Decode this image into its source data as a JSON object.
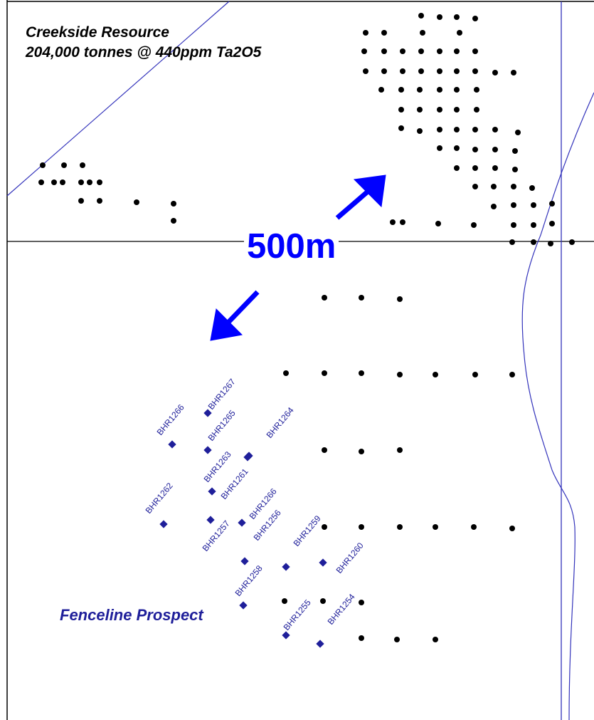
{
  "map": {
    "colors": {
      "background": "#ffffff",
      "frame": "#000000",
      "drillhole": "#000000",
      "new_drillhole": "#1f1f9a",
      "arrow": "#0000ff",
      "boundary": "#3333bb"
    },
    "titles": {
      "resource_name": "Creekside Resource",
      "resource_grade": "204,000 tonnes @ 440ppm Ta2O5",
      "prospect_name": "Fenceline Prospect",
      "scale": "500m"
    },
    "drillhole_labels": [
      "BHR1267",
      "BHR1266",
      "BHR1265",
      "BHR1264",
      "BHR1263",
      "BHR1262",
      "BHR1261",
      "BHR1266",
      "BHR1257",
      "BHR1256",
      "BHR1259",
      "BHR1260",
      "BHR1258",
      "BHR1255",
      "BHR1254"
    ]
  }
}
